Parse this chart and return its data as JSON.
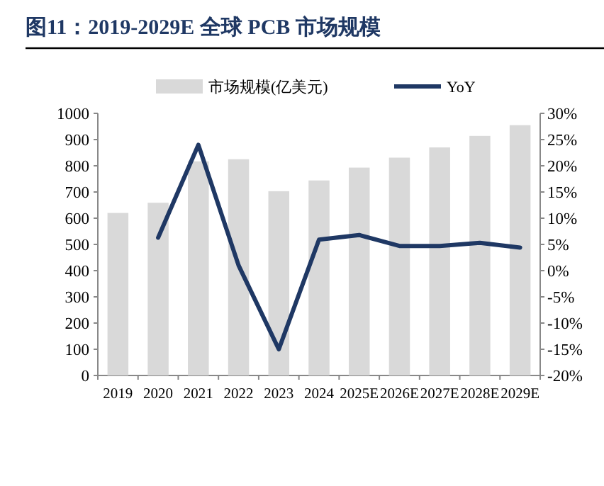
{
  "chart_data": {
    "type": "bar",
    "title": "图11：2019-2029E 全球 PCB 市场规模",
    "categories": [
      "2019",
      "2020",
      "2021",
      "2022",
      "2023",
      "2024",
      "2025E",
      "2026E",
      "2027E",
      "2028E",
      "2029E"
    ],
    "series": [
      {
        "name": "市场规模(亿美元)",
        "color": "#d9d9d9",
        "values": [
          620,
          659,
          817,
          825,
          703,
          744,
          793,
          831,
          870,
          914,
          955
        ]
      },
      {
        "name": "YoY",
        "type": "line",
        "axis": "y2",
        "color": "#1f3864",
        "values": [
          null,
          6.3,
          24.0,
          1.0,
          -15.0,
          5.9,
          6.8,
          4.7,
          4.7,
          5.3,
          4.4
        ]
      }
    ],
    "ylim": [
      0,
      1000
    ],
    "yticks": [
      0,
      100,
      200,
      300,
      400,
      500,
      600,
      700,
      800,
      900,
      1000
    ],
    "y2lim": [
      -20,
      30
    ],
    "y2ticks": [
      {
        "value": -20,
        "label": "-20%"
      },
      {
        "value": -15,
        "label": "-15%"
      },
      {
        "value": -10,
        "label": "-10%"
      },
      {
        "value": -5,
        "label": "-5%"
      },
      {
        "value": 0,
        "label": "0%"
      },
      {
        "value": 5,
        "label": "5%"
      },
      {
        "value": 10,
        "label": "10%"
      },
      {
        "value": 15,
        "label": "15%"
      },
      {
        "value": 20,
        "label": "20%"
      },
      {
        "value": 25,
        "label": "25%"
      },
      {
        "value": 30,
        "label": "30%"
      }
    ],
    "legend": "top",
    "grid": false
  }
}
